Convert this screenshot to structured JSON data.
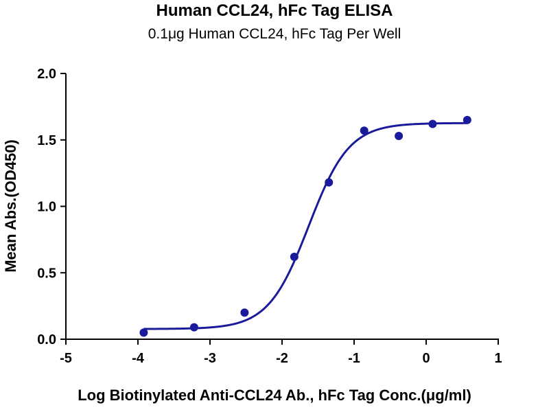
{
  "chart_data": {
    "type": "scatter",
    "title": "Human CCL24, hFc Tag ELISA",
    "subtitle": "0.1μg Human CCL24, hFc Tag Per Well",
    "xlabel": "Log Biotinylated Anti-CCL24 Ab., hFc Tag Conc.(μg/ml)",
    "ylabel": "Mean Abs.(OD450)",
    "xlim": [
      -5,
      1
    ],
    "ylim": [
      0,
      2.0
    ],
    "x_ticks": [
      "-5",
      "-4",
      "-3",
      "-2",
      "-1",
      "0",
      "1"
    ],
    "y_ticks": [
      "0.0",
      "0.5",
      "1.0",
      "1.5",
      "2.0"
    ],
    "grid": false,
    "colors": {
      "series": "#1a1a9c"
    },
    "series": [
      {
        "x": [
          -3.92,
          -3.22,
          -2.52,
          -1.83,
          -1.35,
          -0.86,
          -0.38,
          0.09,
          0.57
        ],
        "y": [
          0.05,
          0.09,
          0.2,
          0.62,
          1.18,
          1.57,
          1.53,
          1.62,
          1.65
        ]
      }
    ],
    "fit": {
      "type": "4PL",
      "bottom": 0.077,
      "top": 1.627,
      "logEC50": -1.63,
      "hill": 1.55
    }
  }
}
